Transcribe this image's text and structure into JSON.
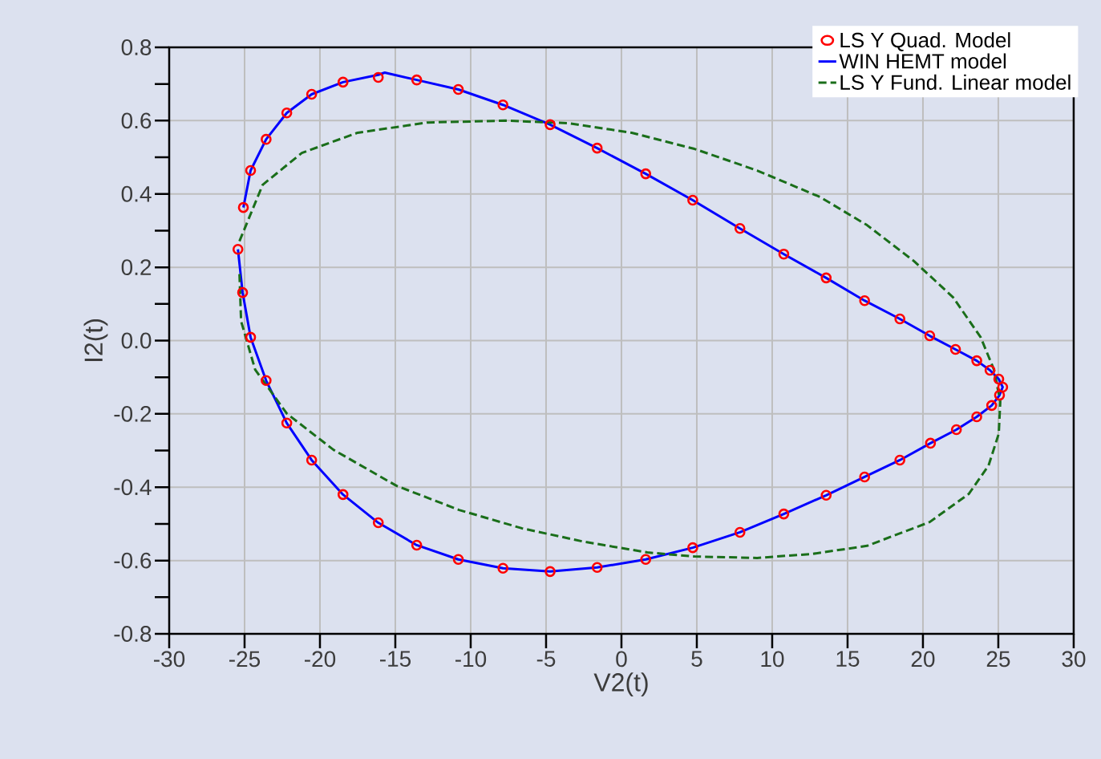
{
  "chart_data": {
    "type": "line",
    "xlabel": "V2(t)",
    "ylabel": "I2(t)",
    "xlim": [
      -30,
      30
    ],
    "ylim": [
      -0.8,
      0.8
    ],
    "xticks": [
      -30,
      -25,
      -20,
      -15,
      -10,
      -5,
      0,
      5,
      10,
      15,
      20,
      25,
      30
    ],
    "yticks": [
      {
        "value": -0.8,
        "label": "-0.8"
      },
      {
        "value": -0.6,
        "label": "-0.6"
      },
      {
        "value": -0.4,
        "label": "-0.4"
      },
      {
        "value": -0.2,
        "label": "-0.2"
      },
      {
        "value": 0,
        "label": "0.0"
      },
      {
        "value": 0.2,
        "label": "0.2"
      },
      {
        "value": 0.4,
        "label": "0.4"
      },
      {
        "value": 0.6,
        "label": "0.6"
      },
      {
        "value": 0.8,
        "label": "0.8"
      }
    ],
    "grid": true,
    "legend": "top right",
    "series": [
      {
        "name": "LS Y Quad. Model",
        "type": "scatter",
        "marker": "circle",
        "color": "#ff0000",
        "x": [
          -25.08,
          -24.6,
          -23.57,
          -22.2,
          -20.55,
          -18.47,
          -16.13,
          -13.58,
          -10.82,
          -7.86,
          -4.73,
          -1.61,
          1.61,
          4.73,
          7.86,
          10.77,
          13.58,
          16.13,
          18.47,
          20.45,
          22.16,
          23.57,
          24.45,
          25.03,
          25.29,
          25.08,
          24.56,
          23.57,
          22.22,
          20.5,
          18.47,
          16.13,
          13.58,
          10.77,
          7.86,
          4.73,
          1.61,
          -1.61,
          -4.73,
          -7.86,
          -10.82,
          -13.58,
          -16.13,
          -18.47,
          -20.55,
          -22.2,
          -23.57,
          -24.6,
          -25.13,
          -25.44
        ],
        "values": [
          0.363,
          0.464,
          0.549,
          0.621,
          0.672,
          0.705,
          0.718,
          0.711,
          0.685,
          0.643,
          0.589,
          0.525,
          0.455,
          0.383,
          0.306,
          0.236,
          0.171,
          0.109,
          0.059,
          0.013,
          -0.024,
          -0.055,
          -0.081,
          -0.105,
          -0.127,
          -0.149,
          -0.177,
          -0.208,
          -0.243,
          -0.28,
          -0.326,
          -0.372,
          -0.422,
          -0.473,
          -0.523,
          -0.565,
          -0.597,
          -0.619,
          -0.63,
          -0.621,
          -0.597,
          -0.558,
          -0.497,
          -0.42,
          -0.326,
          -0.225,
          -0.109,
          0.009,
          0.131,
          0.249
        ]
      },
      {
        "name": "WIN HEMT model",
        "line_style": "solid",
        "color": "#0000ff",
        "x": [
          -25.08,
          -24.6,
          -23.57,
          -22.2,
          -20.55,
          -18.47,
          -16.13,
          -15.7,
          -13.58,
          -10.82,
          -7.86,
          -4.73,
          -1.61,
          1.61,
          4.73,
          7.86,
          10.77,
          13.58,
          16.13,
          18.47,
          20.45,
          22.16,
          23.57,
          24.45,
          25.03,
          25.29,
          25.08,
          24.56,
          23.57,
          22.22,
          20.5,
          18.47,
          16.13,
          13.58,
          10.77,
          7.86,
          4.73,
          1.61,
          -1.61,
          -4.73,
          -7.86,
          -10.82,
          -13.58,
          -16.13,
          -18.47,
          -20.55,
          -22.2,
          -23.57,
          -24.6,
          -25.13,
          -25.44
        ],
        "values": [
          0.363,
          0.464,
          0.549,
          0.621,
          0.672,
          0.705,
          0.725,
          0.731,
          0.711,
          0.685,
          0.643,
          0.589,
          0.525,
          0.455,
          0.383,
          0.306,
          0.236,
          0.171,
          0.109,
          0.059,
          0.013,
          -0.024,
          -0.055,
          -0.081,
          -0.105,
          -0.127,
          -0.149,
          -0.177,
          -0.208,
          -0.243,
          -0.28,
          -0.326,
          -0.372,
          -0.422,
          -0.473,
          -0.523,
          -0.565,
          -0.597,
          -0.619,
          -0.63,
          -0.621,
          -0.597,
          -0.558,
          -0.497,
          -0.42,
          -0.326,
          -0.225,
          -0.109,
          0.009,
          0.131,
          0.249
        ]
      },
      {
        "name": "LS Y Fund. Linear model",
        "line_style": "dashed",
        "color": "#1a6e1a",
        "x": [
          -25.34,
          -23.8,
          -21.2,
          -17.5,
          -12.85,
          -7.65,
          -3.49,
          0.68,
          4.84,
          9.0,
          13.16,
          16.29,
          19.4,
          22.0,
          23.83,
          24.71,
          25.13,
          25.03,
          24.35,
          23.05,
          20.45,
          16.29,
          12.64,
          9.0,
          4.84,
          1.72,
          -2.45,
          -6.61,
          -10.77,
          -14.93,
          -19.1,
          -22.2,
          -24.3,
          -25.23,
          -25.34
        ],
        "values": [
          0.271,
          0.425,
          0.512,
          0.567,
          0.595,
          0.6,
          0.593,
          0.567,
          0.523,
          0.464,
          0.392,
          0.315,
          0.217,
          0.118,
          0.009,
          -0.079,
          -0.166,
          -0.254,
          -0.341,
          -0.418,
          -0.495,
          -0.56,
          -0.582,
          -0.593,
          -0.589,
          -0.578,
          -0.549,
          -0.512,
          -0.462,
          -0.396,
          -0.298,
          -0.199,
          -0.079,
          0.053,
          0.184
        ]
      }
    ]
  }
}
